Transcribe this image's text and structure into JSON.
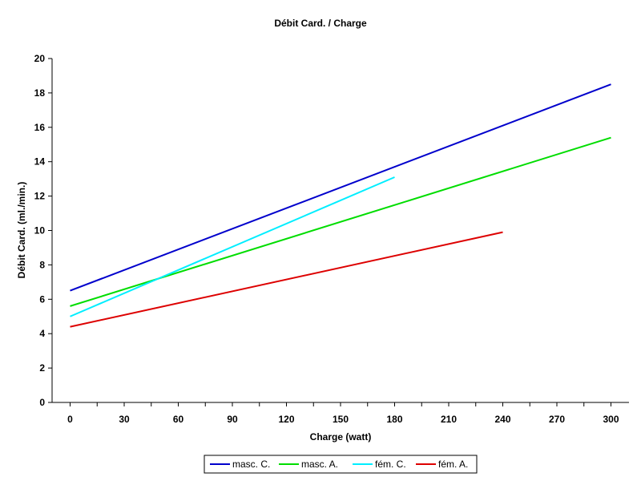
{
  "chart_data": {
    "type": "line",
    "title": "Débit Card. / Charge",
    "xlabel": "Charge (watt)",
    "ylabel": "Débit Card. (ml./min.)",
    "xlim": [
      -10,
      310
    ],
    "ylim": [
      0,
      20
    ],
    "xticks": [
      0,
      30,
      60,
      90,
      120,
      150,
      180,
      210,
      240,
      270,
      300
    ],
    "yticks": [
      0,
      2,
      4,
      6,
      8,
      10,
      12,
      14,
      16,
      18,
      20
    ],
    "grid": false,
    "legend_position": "bottom",
    "series": [
      {
        "name": "masc. C.",
        "color": "#0000cc",
        "x": [
          0,
          300
        ],
        "y": [
          6.5,
          18.5
        ]
      },
      {
        "name": "masc. A.",
        "color": "#00dd00",
        "x": [
          0,
          300
        ],
        "y": [
          5.6,
          15.4
        ]
      },
      {
        "name": "fém. C.",
        "color": "#00eeff",
        "x": [
          0,
          180
        ],
        "y": [
          5.0,
          13.1
        ]
      },
      {
        "name": "fém. A.",
        "color": "#dd0000",
        "x": [
          0,
          240
        ],
        "y": [
          4.4,
          9.9
        ]
      }
    ]
  }
}
